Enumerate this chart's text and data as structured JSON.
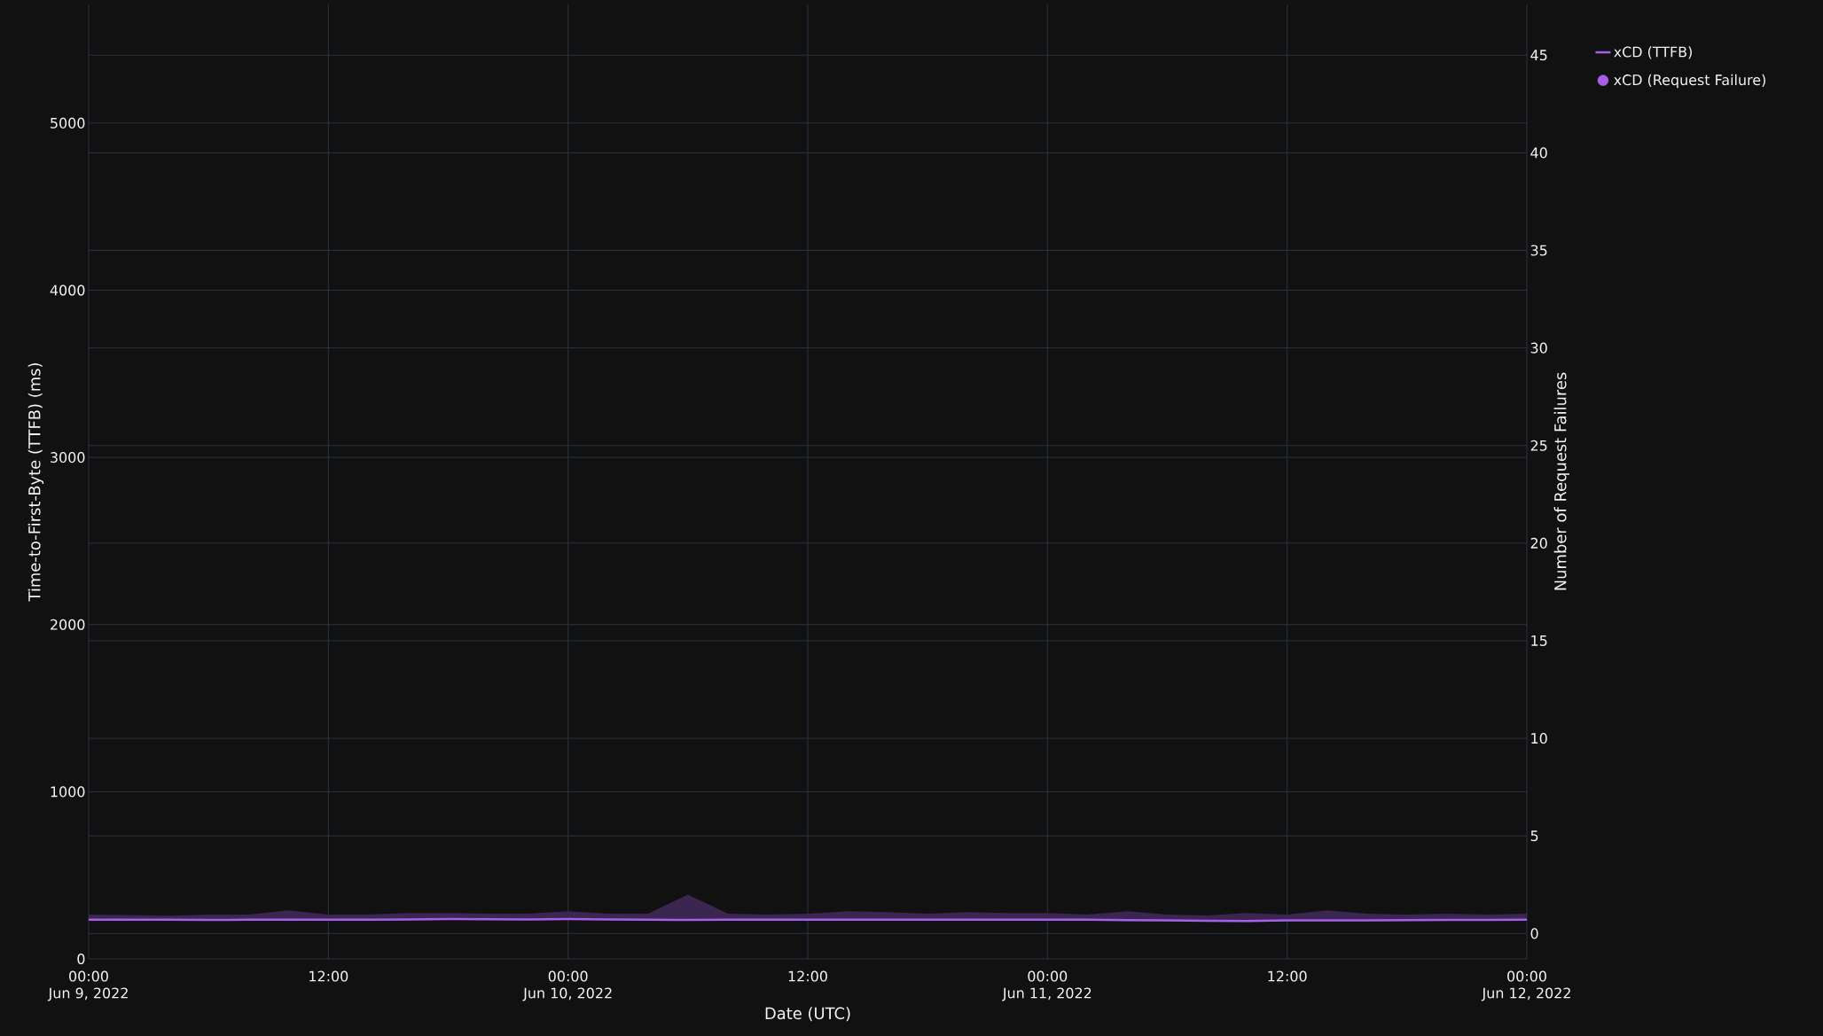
{
  "chart_data": {
    "type": "line",
    "xlabel": "Date (UTC)",
    "ylabel": "Time-to-First-Byte (TTFB) (ms)",
    "y2label": "Number of Request Failures",
    "x": [
      "2022-06-09T00:00",
      "2022-06-09T02:00",
      "2022-06-09T04:00",
      "2022-06-09T06:00",
      "2022-06-09T08:00",
      "2022-06-09T10:00",
      "2022-06-09T12:00",
      "2022-06-09T14:00",
      "2022-06-09T16:00",
      "2022-06-09T18:00",
      "2022-06-09T20:00",
      "2022-06-09T22:00",
      "2022-06-10T00:00",
      "2022-06-10T02:00",
      "2022-06-10T04:00",
      "2022-06-10T06:00",
      "2022-06-10T08:00",
      "2022-06-10T10:00",
      "2022-06-10T12:00",
      "2022-06-10T14:00",
      "2022-06-10T16:00",
      "2022-06-10T18:00",
      "2022-06-10T20:00",
      "2022-06-10T22:00",
      "2022-06-11T00:00",
      "2022-06-11T02:00",
      "2022-06-11T04:00",
      "2022-06-11T06:00",
      "2022-06-11T08:00",
      "2022-06-11T10:00",
      "2022-06-11T12:00",
      "2022-06-11T14:00",
      "2022-06-11T16:00",
      "2022-06-11T18:00",
      "2022-06-11T20:00",
      "2022-06-11T22:00",
      "2022-06-12T00:00"
    ],
    "series": [
      {
        "name": "xCD (TTFB)",
        "color": "#a55fe8",
        "values": [
          235,
          235,
          234,
          233,
          234,
          234,
          234,
          235,
          236,
          238,
          237,
          236,
          238,
          236,
          235,
          233,
          234,
          234,
          235,
          235,
          235,
          235,
          235,
          235,
          235,
          234,
          232,
          230,
          228,
          226,
          230,
          230,
          231,
          232,
          233,
          233,
          234
        ],
        "lower": [
          230,
          230,
          229,
          228,
          229,
          229,
          229,
          230,
          231,
          233,
          232,
          231,
          233,
          231,
          230,
          228,
          229,
          229,
          230,
          230,
          230,
          230,
          230,
          230,
          230,
          229,
          227,
          225,
          223,
          221,
          225,
          225,
          226,
          227,
          228,
          228,
          229
        ],
        "upper": [
          265,
          262,
          258,
          265,
          265,
          290,
          265,
          265,
          275,
          275,
          270,
          270,
          285,
          270,
          270,
          385,
          270,
          265,
          270,
          285,
          280,
          270,
          280,
          275,
          275,
          265,
          285,
          265,
          260,
          275,
          265,
          290,
          270,
          265,
          270,
          265,
          270
        ]
      },
      {
        "name": "xCD (Request Failure)",
        "color": "#a55fe8",
        "type": "scatter",
        "values": [
          null,
          null,
          null,
          null,
          null,
          null,
          null,
          null,
          null,
          null,
          null,
          null,
          null,
          null,
          null,
          null,
          null,
          null,
          null,
          null,
          null,
          null,
          null,
          null,
          null,
          null,
          null,
          null,
          null,
          null,
          null,
          null,
          null,
          null,
          null,
          null,
          null
        ]
      }
    ],
    "xlim": [
      "2022-06-09T00:00",
      "2022-06-12T00:00"
    ],
    "xticks": [
      {
        "value": "2022-06-09T00:00",
        "label": "00:00\nJun 9, 2022"
      },
      {
        "value": "2022-06-09T12:00",
        "label": "12:00"
      },
      {
        "value": "2022-06-10T00:00",
        "label": "00:00\nJun 10, 2022"
      },
      {
        "value": "2022-06-10T12:00",
        "label": "12:00"
      },
      {
        "value": "2022-06-11T00:00",
        "label": "00:00\nJun 11, 2022"
      },
      {
        "value": "2022-06-11T12:00",
        "label": "12:00"
      },
      {
        "value": "2022-06-12T00:00",
        "label": "00:00\nJun 12, 2022"
      }
    ],
    "ylim": [
      0,
      5710
    ],
    "yticks": [
      0,
      1000,
      2000,
      3000,
      4000,
      5000
    ],
    "y2lim": [
      -1.3,
      47.6
    ],
    "y2ticks": [
      0,
      5,
      10,
      15,
      20,
      25,
      30,
      35,
      40,
      45
    ],
    "grid": true,
    "legend": "top right"
  }
}
